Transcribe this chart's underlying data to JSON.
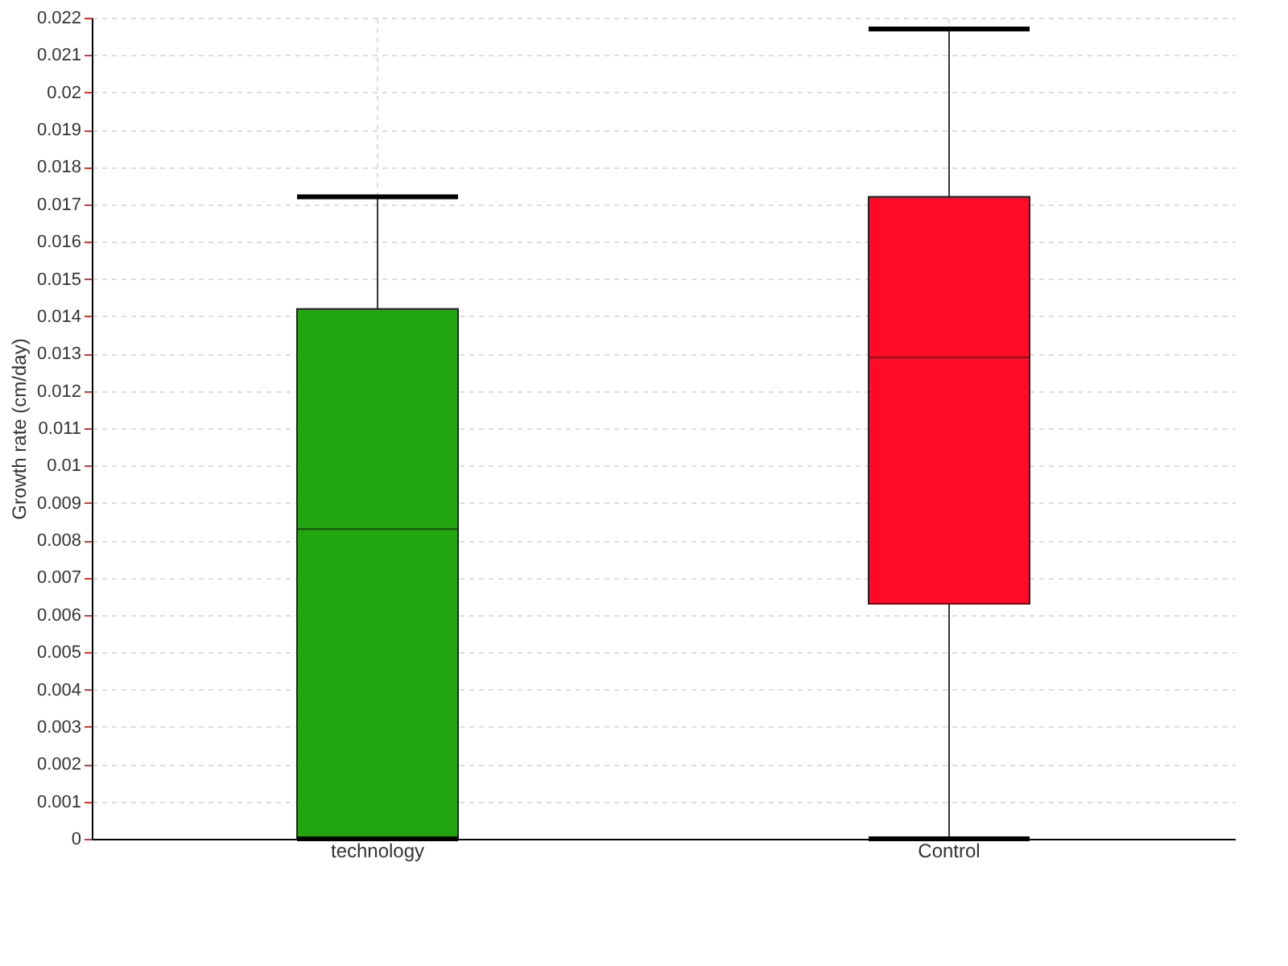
{
  "chart_data": {
    "type": "box",
    "categories": [
      "technology",
      "Control"
    ],
    "ylabel": "Growth rate (cm/day)",
    "ylim": [
      0,
      0.022
    ],
    "yticks": [
      0,
      0.001,
      0.002,
      0.003,
      0.004,
      0.005,
      0.006,
      0.007,
      0.008,
      0.009,
      0.01,
      0.011,
      0.012,
      0.013,
      0.014,
      0.015,
      0.016,
      0.017,
      0.018,
      0.019,
      0.02,
      0.021,
      0.022
    ],
    "grid": true,
    "colors": [
      "#21a60f",
      "#ff0b27"
    ],
    "boxes": [
      {
        "low": 0,
        "q1": 0,
        "median": 0.0083,
        "q3": 0.0142,
        "high": 0.0172
      },
      {
        "low": 0,
        "q1": 0.0063,
        "median": 0.0129,
        "q3": 0.0172,
        "high": 0.0217
      }
    ]
  }
}
